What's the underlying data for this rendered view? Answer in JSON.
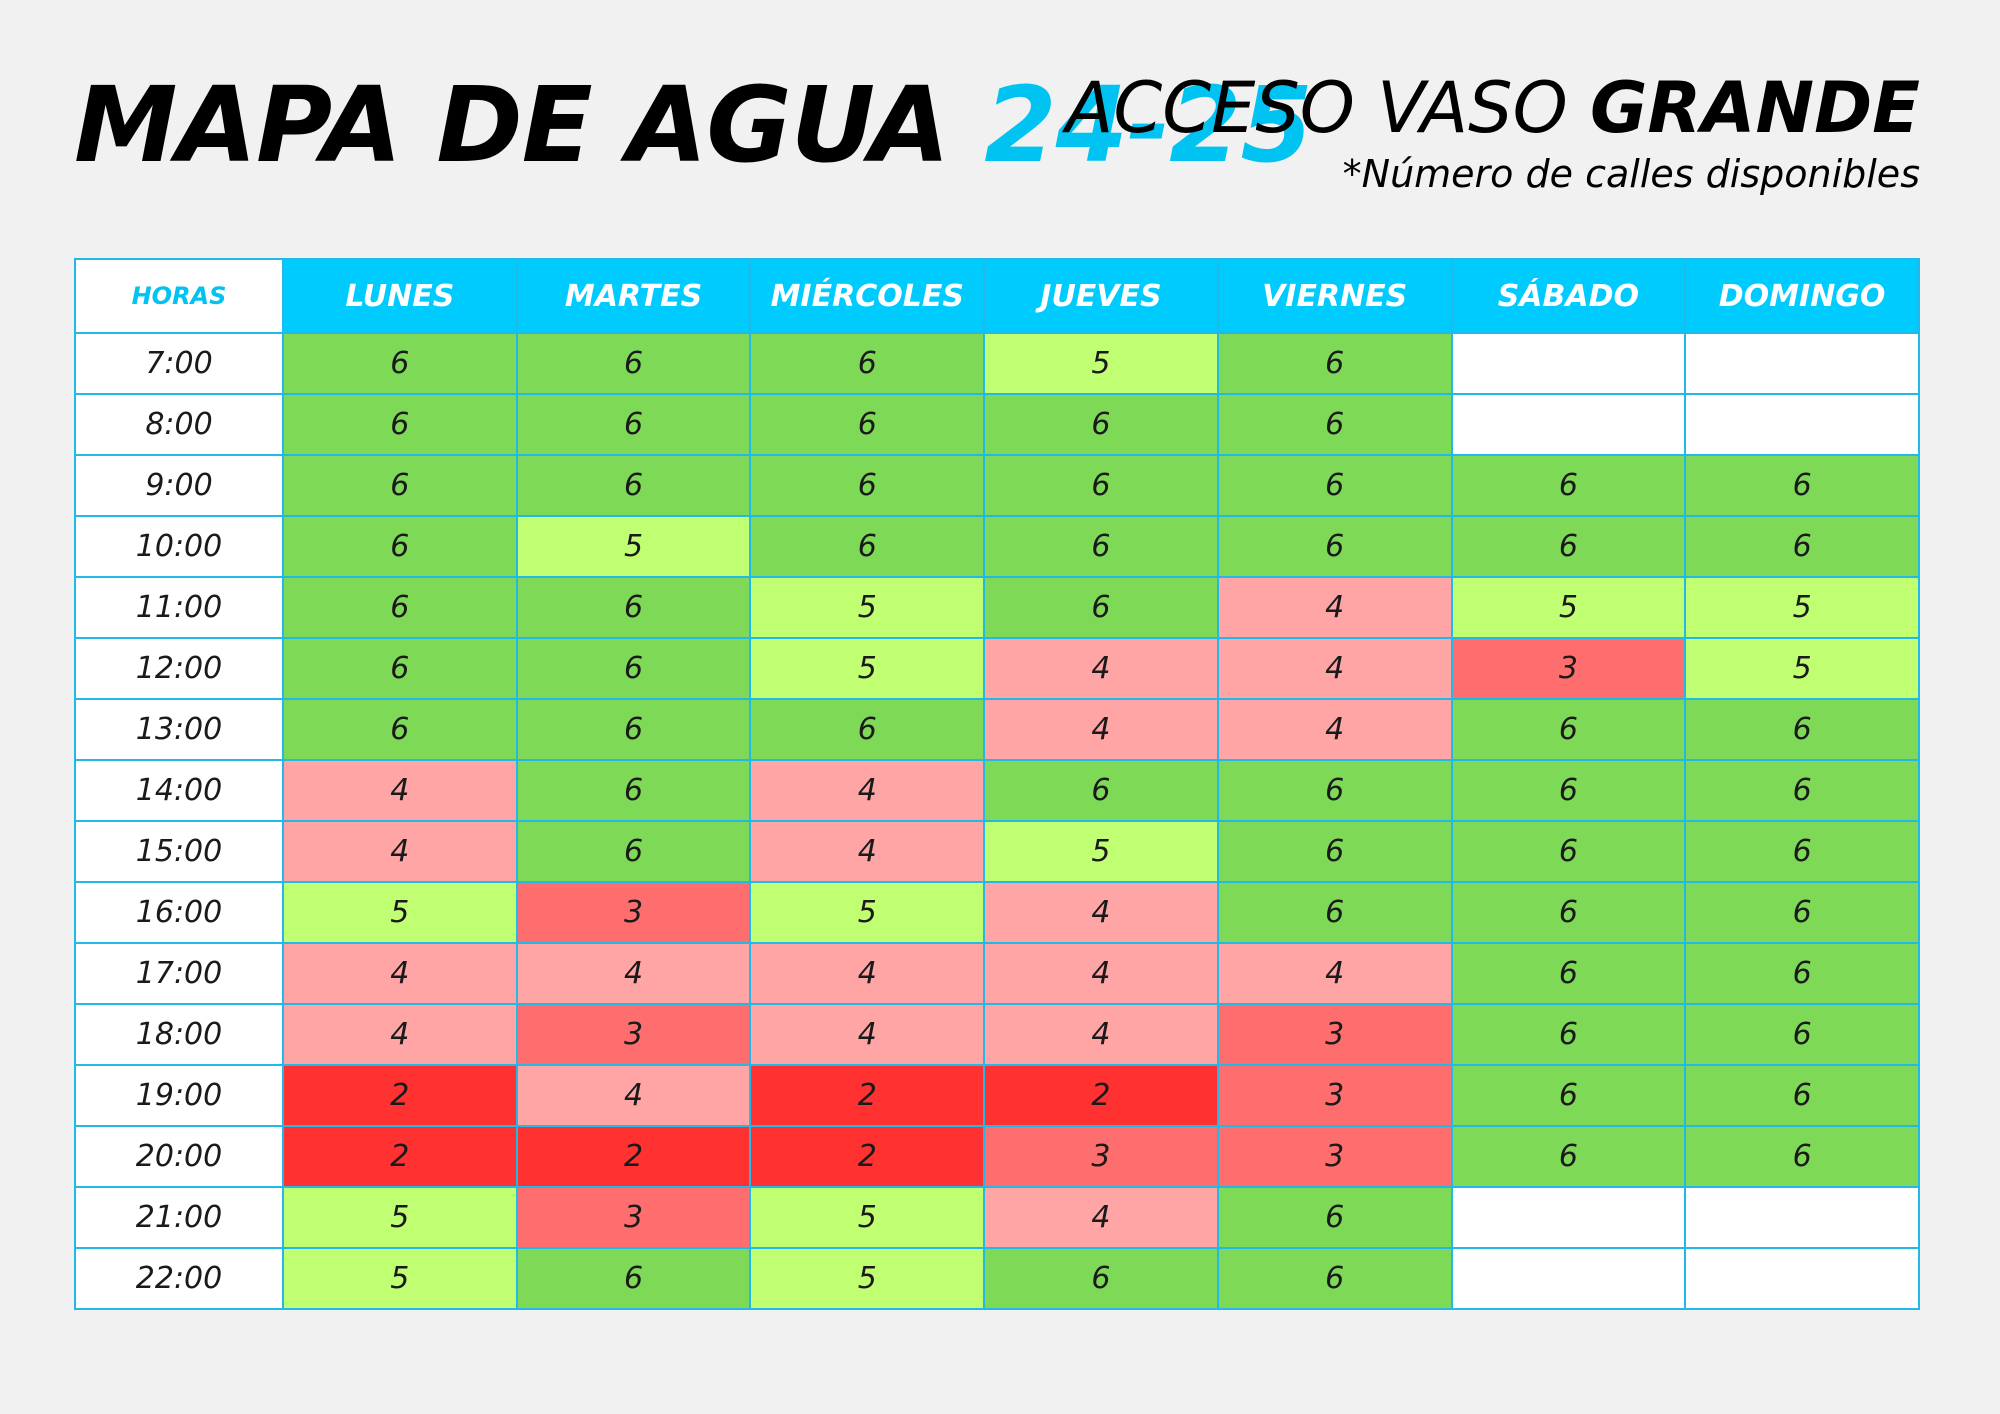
{
  "header": {
    "title_main": "MAPA DE AGUA",
    "title_accent": "24-25",
    "subtitle_light": "ACCESO VASO",
    "subtitle_bold": "GRANDE",
    "note": "*Número de calles disponibles"
  },
  "colors": {
    "accent": "#00c3f2",
    "header_bg": "#00cbff",
    "grid_line": "#22b9e8",
    "levels": {
      "6": "#7ed957",
      "5": "#c1ff72",
      "4": "#ffa5a5",
      "3": "#ff6e6e",
      "2": "#ff3131",
      "": "#ffffff"
    }
  },
  "schedule": {
    "hours_label": "HORAS",
    "days": [
      "LUNES",
      "MARTES",
      "MIÉRCOLES",
      "JUEVES",
      "VIERNES",
      "SÁBADO",
      "DOMINGO"
    ],
    "rows": [
      {
        "hour": "7:00",
        "values": [
          "6",
          "6",
          "6",
          "5",
          "6",
          "",
          ""
        ]
      },
      {
        "hour": "8:00",
        "values": [
          "6",
          "6",
          "6",
          "6",
          "6",
          "",
          ""
        ]
      },
      {
        "hour": "9:00",
        "values": [
          "6",
          "6",
          "6",
          "6",
          "6",
          "6",
          "6"
        ]
      },
      {
        "hour": "10:00",
        "values": [
          "6",
          "5",
          "6",
          "6",
          "6",
          "6",
          "6"
        ]
      },
      {
        "hour": "11:00",
        "values": [
          "6",
          "6",
          "5",
          "6",
          "4",
          "5",
          "5"
        ]
      },
      {
        "hour": "12:00",
        "values": [
          "6",
          "6",
          "5",
          "4",
          "4",
          "3",
          "5"
        ]
      },
      {
        "hour": "13:00",
        "values": [
          "6",
          "6",
          "6",
          "4",
          "4",
          "6",
          "6"
        ]
      },
      {
        "hour": "14:00",
        "values": [
          "4",
          "6",
          "4",
          "6",
          "6",
          "6",
          "6"
        ]
      },
      {
        "hour": "15:00",
        "values": [
          "4",
          "6",
          "4",
          "5",
          "6",
          "6",
          "6"
        ]
      },
      {
        "hour": "16:00",
        "values": [
          "5",
          "3",
          "5",
          "4",
          "6",
          "6",
          "6"
        ]
      },
      {
        "hour": "17:00",
        "values": [
          "4",
          "4",
          "4",
          "4",
          "4",
          "6",
          "6"
        ]
      },
      {
        "hour": "18:00",
        "values": [
          "4",
          "3",
          "4",
          "4",
          "3",
          "6",
          "6"
        ]
      },
      {
        "hour": "19:00",
        "values": [
          "2",
          "4",
          "2",
          "2",
          "3",
          "6",
          "6"
        ]
      },
      {
        "hour": "20:00",
        "values": [
          "2",
          "2",
          "2",
          "3",
          "3",
          "6",
          "6"
        ]
      },
      {
        "hour": "21:00",
        "values": [
          "5",
          "3",
          "5",
          "4",
          "6",
          "",
          ""
        ]
      },
      {
        "hour": "22:00",
        "values": [
          "5",
          "6",
          "5",
          "6",
          "6",
          "",
          ""
        ]
      }
    ]
  }
}
